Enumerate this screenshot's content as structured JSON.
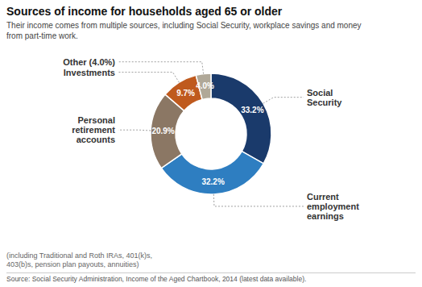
{
  "chart_data": {
    "type": "donut",
    "title": "Sources of income for households aged 65 or older",
    "subtitle": "Their income comes from multiple sources, including Social Security, workplace savings and money\nfrom part-time work.",
    "categories": [
      "Social Security",
      "Current employment earnings",
      "Personal retirement accounts",
      "Investments",
      "Other (4.0%)"
    ],
    "values": [
      33.2,
      32.2,
      20.9,
      9.7,
      4.0
    ],
    "value_labels": [
      "33.2%",
      "32.2%",
      "20.9%",
      "9.7%",
      "4.0%"
    ],
    "colors": [
      "#1a3a6b",
      "#2e7ec1",
      "#8b7764",
      "#bf5a1e",
      "#b0a898"
    ],
    "data_labels": true,
    "annotations": [
      "(including Traditional and Roth IRAs, 401(k)s,\n403(b)s, pension plan payouts, annuities)",
      "Source: Social Security Administration, Income of the Aged Chartbook, 2014 (latest data available)."
    ]
  }
}
